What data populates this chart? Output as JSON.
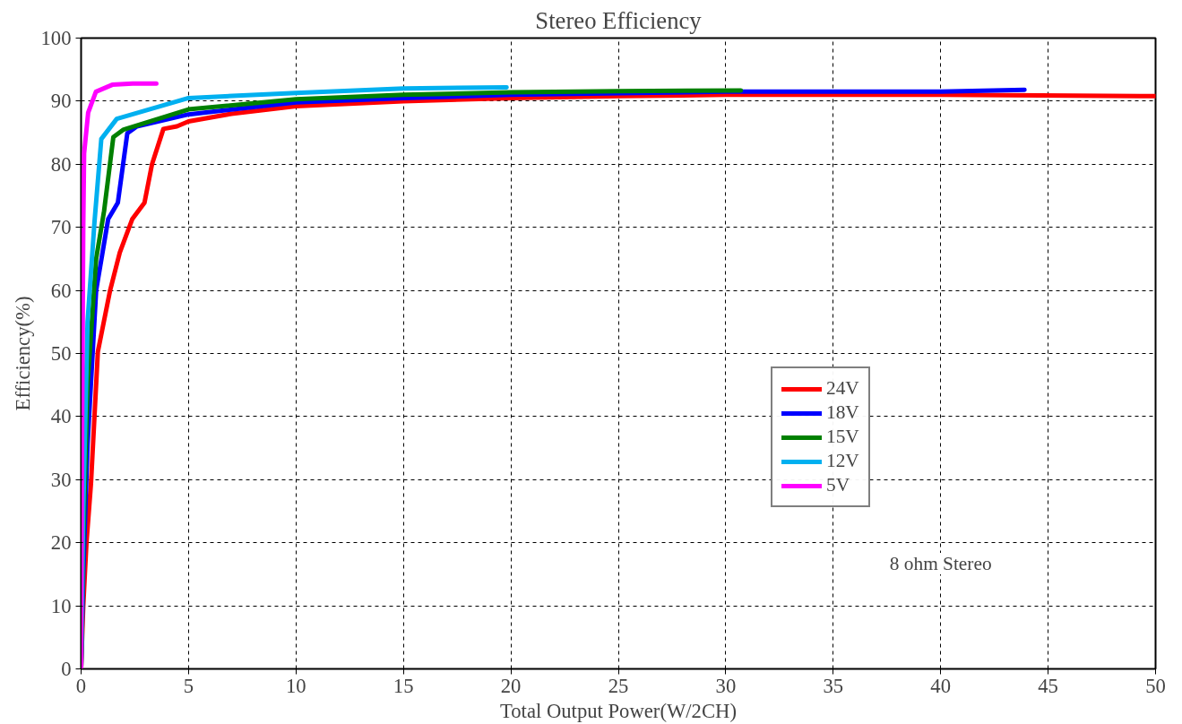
{
  "chart_data": {
    "type": "line",
    "title": "Stereo Efficiency",
    "xlabel": "Total Output Power(W/2CH)",
    "ylabel": "Efficiency(%)",
    "xlim": [
      0,
      50
    ],
    "ylim": [
      0,
      100
    ],
    "xticks": [
      0,
      5,
      10,
      15,
      20,
      25,
      30,
      35,
      40,
      45,
      50
    ],
    "yticks": [
      0,
      10,
      20,
      30,
      40,
      50,
      60,
      70,
      80,
      90,
      100
    ],
    "grid": true,
    "legend": "right",
    "line_style": "solid",
    "marker": "none",
    "annotations": [
      "8 ohm Stereo"
    ],
    "series": [
      {
        "name": "24V",
        "color": "#ff0000",
        "x": [
          0,
          0.1,
          0.25,
          0.46,
          0.78,
          1.35,
          1.8,
          2.38,
          2.95,
          3.3,
          3.83,
          4.46,
          5,
          7,
          10,
          15,
          20,
          25,
          30,
          40,
          50
        ],
        "values": [
          0,
          10,
          20,
          29.4,
          50.3,
          60,
          66,
          71.3,
          73.9,
          80,
          85.6,
          86,
          86.8,
          88,
          89.2,
          90,
          90.5,
          90.8,
          91,
          91,
          90.8
        ]
      },
      {
        "name": "18V",
        "color": "#0000ff",
        "x": [
          0,
          0.1,
          0.3,
          0.7,
          1.26,
          1.71,
          2.15,
          2.6,
          5,
          10,
          15,
          20,
          30,
          40,
          43.9
        ],
        "values": [
          0,
          15,
          35.6,
          60,
          71.3,
          73.9,
          84.9,
          86,
          87.9,
          89.8,
          90.5,
          91,
          91.5,
          91.5,
          91.8
        ]
      },
      {
        "name": "15V",
        "color": "#008000",
        "x": [
          0,
          0.1,
          0.3,
          0.7,
          1.07,
          1.5,
          1.98,
          5,
          10,
          15,
          20,
          25,
          30.7
        ],
        "values": [
          0,
          20,
          45,
          65,
          72.6,
          84.3,
          85.5,
          88.7,
          90.3,
          91,
          91.4,
          91.6,
          91.7
        ]
      },
      {
        "name": "12V",
        "color": "#00b0f0",
        "x": [
          0,
          0.1,
          0.3,
          0.62,
          0.94,
          1.66,
          5,
          10,
          15,
          19.8
        ],
        "values": [
          0,
          25,
          55,
          70.7,
          84,
          87.2,
          90.5,
          91.3,
          92,
          92.2
        ]
      },
      {
        "name": "5V",
        "color": "#ff00ff",
        "x": [
          0,
          0.05,
          0.1,
          0.14,
          0.33,
          0.69,
          1.45,
          2.4,
          3.5
        ],
        "values": [
          0,
          40,
          70,
          81.7,
          88.2,
          91.5,
          92.6,
          92.8,
          92.8
        ]
      }
    ]
  }
}
